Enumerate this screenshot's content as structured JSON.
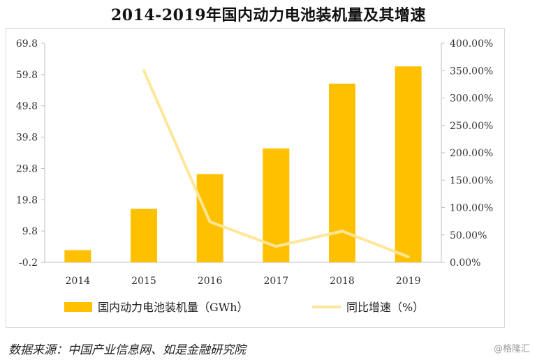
{
  "title": "2014-2019年国内动力电池装机量及其增速",
  "source": "数据来源：中国产业信息网、如是金融研究院",
  "watermark": "@格隆汇",
  "chart_data": {
    "type": "bar",
    "title": "2014-2019年国内动力电池装机量及其增速",
    "categories": [
      "2014",
      "2015",
      "2016",
      "2017",
      "2018",
      "2019"
    ],
    "series": [
      {
        "name": "国内动力电池装机量（GWh）",
        "type": "bar",
        "axis": "left",
        "color": "#FFC000",
        "values": [
          3.7,
          16.9,
          28.0,
          36.2,
          56.9,
          62.4
        ]
      },
      {
        "name": "同比增速（%）",
        "type": "line",
        "axis": "right",
        "color": "#FFE699",
        "values": [
          null,
          350.0,
          74.0,
          29.0,
          57.0,
          10.0
        ]
      }
    ],
    "y_left": {
      "ylim": [
        -0.2,
        69.8
      ],
      "ticks": [
        "-0.2",
        "9.8",
        "19.8",
        "29.8",
        "39.8",
        "49.8",
        "59.8",
        "69.8"
      ]
    },
    "y_right": {
      "ylim": [
        0,
        400
      ],
      "ticks": [
        "0.00%",
        "50.00%",
        "100.00%",
        "150.00%",
        "200.00%",
        "250.00%",
        "300.00%",
        "350.00%",
        "400.00%"
      ]
    },
    "grid": false,
    "legend": "bottom"
  }
}
